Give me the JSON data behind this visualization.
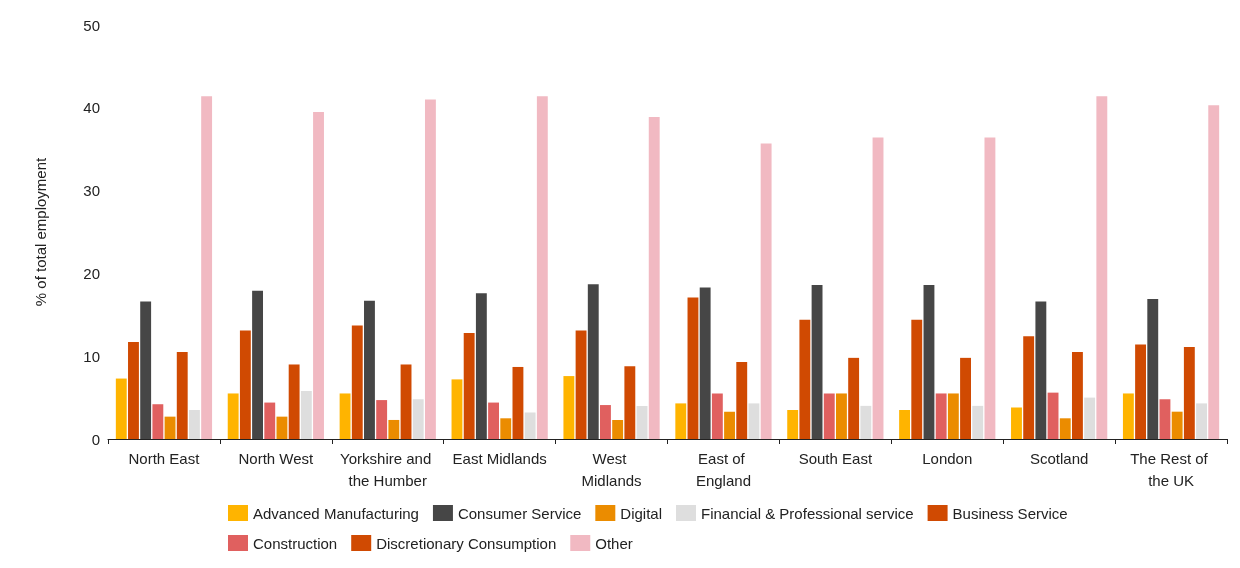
{
  "chart_data": {
    "type": "bar",
    "ylabel": "% of total employment",
    "categories": [
      "North East",
      "North West",
      "Yorkshire and the Humber",
      "East Midlands",
      "West Midlands",
      "East of England",
      "South East",
      "London",
      "Scotland",
      "The Rest of the UK"
    ],
    "series": [
      {
        "name": "Advanced Manufacturing",
        "color": "#ffb400",
        "values": [
          7.3,
          5.5,
          5.5,
          7.2,
          7.6,
          4.3,
          3.5,
          3.5,
          3.8,
          5.5
        ]
      },
      {
        "name": "Business Service",
        "color": "#d04a02",
        "values": [
          11.7,
          13.1,
          13.7,
          12.8,
          13.1,
          17.1,
          14.4,
          14.4,
          12.4,
          11.4
        ]
      },
      {
        "name": "Consumer Service",
        "color": "#464646",
        "values": [
          16.6,
          17.9,
          16.7,
          17.6,
          18.7,
          18.3,
          18.6,
          18.6,
          16.6,
          16.9
        ]
      },
      {
        "name": "Construction",
        "color": "#e0605f",
        "values": [
          4.2,
          4.4,
          4.7,
          4.4,
          4.1,
          5.5,
          5.5,
          5.5,
          5.6,
          4.8
        ]
      },
      {
        "name": "Digital",
        "color": "#eb8c00",
        "values": [
          2.7,
          2.7,
          2.3,
          2.5,
          2.3,
          3.3,
          5.5,
          5.5,
          2.5,
          3.3
        ]
      },
      {
        "name": "Discretionary Consumption",
        "color": "#d04a02",
        "values": [
          10.5,
          9.0,
          9.0,
          8.7,
          8.8,
          9.3,
          9.8,
          9.8,
          10.5,
          11.1
        ]
      },
      {
        "name": "Financial & Professional service",
        "color": "#dedede",
        "values": [
          3.5,
          5.8,
          4.8,
          3.2,
          4.0,
          4.3,
          4.0,
          4.0,
          5.0,
          4.3
        ]
      },
      {
        "name": "Other",
        "color": "#f1b9c2",
        "values": [
          41.4,
          39.5,
          41.0,
          41.4,
          38.9,
          35.7,
          36.4,
          36.4,
          41.4,
          40.3
        ]
      }
    ],
    "ylim": [
      0,
      50
    ],
    "yticks": [
      0,
      10,
      20,
      30,
      40,
      50
    ],
    "grid": false,
    "legend": "bottom"
  }
}
